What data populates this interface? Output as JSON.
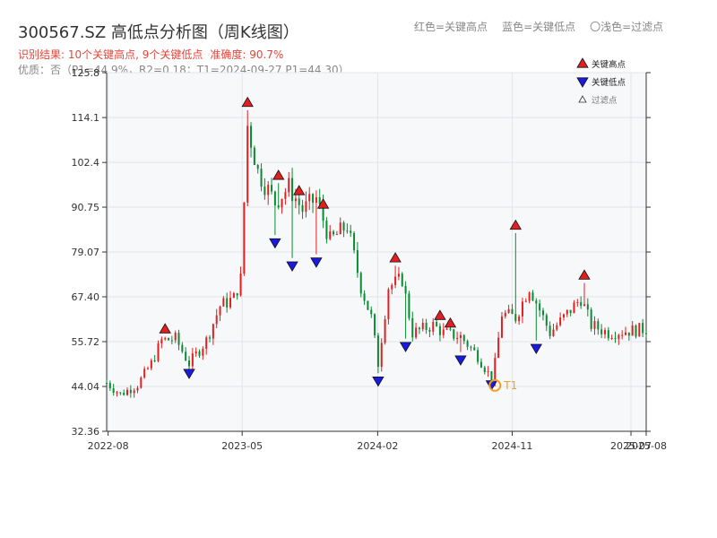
{
  "title": "300567.SZ 高低点分析图（周K线图）",
  "top_legend": {
    "red": "红色=关键高点",
    "blue": "蓝色=关键低点",
    "light": "〇浅色=过滤点"
  },
  "result": {
    "prefix": "识别结果: ",
    "high_count": "10个关键高点, ",
    "low_count": "9个关键低点",
    "accuracy": "准确度: 90.7%"
  },
  "quality": "优质：否（P1=44.9%，R2=0.18；T1=2024-09-27 P1=44.30）",
  "legend": [
    {
      "label": "关键高点",
      "marker": "triangle-up",
      "color": "#e02020"
    },
    {
      "label": "关键低点",
      "marker": "triangle-down",
      "color": "#1a1ae0"
    },
    {
      "label": "过滤点",
      "marker": "triangle-up-hollow",
      "color": "#333333"
    }
  ],
  "colors": {
    "up": "#e02020",
    "down": "#0a8a32",
    "high_marker": "#e02020",
    "low_marker": "#1a1ae0",
    "t1": "#f0a020",
    "plot_bg": "#f7f8fa",
    "grid": "#e2e5ea"
  },
  "chart_data": {
    "type": "candlestick",
    "title": "300567.SZ 高低点分析图（周K线图）",
    "x_ticks": [
      "2022-08",
      "2023-05",
      "2024-02",
      "2024-11",
      "2025-07",
      "2025-08"
    ],
    "x_range": [
      "2022-07-29",
      "2025-08-01"
    ],
    "y_ticks": [
      "32.36",
      "44.04",
      "55.72",
      "67.40",
      "79.07",
      "90.75",
      "102.4",
      "114.1",
      "125.8"
    ],
    "ylim": [
      32.36,
      125.8
    ],
    "grid": true,
    "legend_position": "top-right",
    "anchors": [
      {
        "date": "2022-07-29",
        "close": 45.0
      },
      {
        "date": "2022-08-26",
        "close": 42.0
      },
      {
        "date": "2022-09-30",
        "close": 44.5
      },
      {
        "date": "2022-10-28",
        "close": 50.0
      },
      {
        "date": "2022-11-18",
        "close": 56.0
      },
      {
        "date": "2022-12-16",
        "close": 56.5
      },
      {
        "date": "2023-01-13",
        "close": 50.0
      },
      {
        "date": "2023-02-17",
        "close": 56.0
      },
      {
        "date": "2023-03-17",
        "close": 65.0
      },
      {
        "date": "2023-04-14",
        "close": 67.0
      },
      {
        "date": "2023-04-28",
        "close": 72.0
      },
      {
        "date": "2023-05-12",
        "close": 112.0
      },
      {
        "date": "2023-06-02",
        "close": 100.0
      },
      {
        "date": "2023-07-07",
        "close": 92.0
      },
      {
        "date": "2023-08-04",
        "close": 96.0
      },
      {
        "date": "2023-09-01",
        "close": 90.0
      },
      {
        "date": "2023-09-29",
        "close": 93.0
      },
      {
        "date": "2023-10-27",
        "close": 82.0
      },
      {
        "date": "2023-12-01",
        "close": 86.0
      },
      {
        "date": "2023-12-29",
        "close": 70.0
      },
      {
        "date": "2024-01-19",
        "close": 62.0
      },
      {
        "date": "2024-02-02",
        "close": 50.0
      },
      {
        "date": "2024-02-23",
        "close": 70.0
      },
      {
        "date": "2024-03-22",
        "close": 72.0
      },
      {
        "date": "2024-04-12",
        "close": 58.0
      },
      {
        "date": "2024-05-24",
        "close": 60.0
      },
      {
        "date": "2024-06-14",
        "close": 58.0
      },
      {
        "date": "2024-07-19",
        "close": 57.0
      },
      {
        "date": "2024-08-23",
        "close": 52.0
      },
      {
        "date": "2024-09-20",
        "close": 46.0
      },
      {
        "date": "2024-09-27",
        "close": 50.0
      },
      {
        "date": "2024-10-11",
        "close": 63.0
      },
      {
        "date": "2024-11-08",
        "close": 62.0
      },
      {
        "date": "2024-12-06",
        "close": 70.0
      },
      {
        "date": "2025-01-17",
        "close": 58.0
      },
      {
        "date": "2025-02-28",
        "close": 64.0
      },
      {
        "date": "2025-03-21",
        "close": 67.0
      },
      {
        "date": "2025-04-11",
        "close": 60.0
      },
      {
        "date": "2025-05-16",
        "close": 58.0
      },
      {
        "date": "2025-08-01",
        "close": 59.0
      }
    ],
    "key_highs": [
      {
        "date": "2022-11-25",
        "value": 58.5
      },
      {
        "date": "2023-05-12",
        "value": 117.5
      },
      {
        "date": "2023-07-14",
        "value": 98.5
      },
      {
        "date": "2023-08-25",
        "value": 94.5
      },
      {
        "date": "2023-10-13",
        "value": 91.0
      },
      {
        "date": "2024-03-08",
        "value": 77.0
      },
      {
        "date": "2024-06-07",
        "value": 62.0
      },
      {
        "date": "2024-06-28",
        "value": 60.0
      },
      {
        "date": "2024-11-08",
        "value": 85.5
      },
      {
        "date": "2025-03-28",
        "value": 72.5
      }
    ],
    "key_lows": [
      {
        "date": "2023-01-13",
        "value": 48.0
      },
      {
        "date": "2023-07-07",
        "value": 82.0
      },
      {
        "date": "2023-08-11",
        "value": 76.0
      },
      {
        "date": "2023-09-29",
        "value": 77.0
      },
      {
        "date": "2024-02-02",
        "value": 46.0
      },
      {
        "date": "2024-03-29",
        "value": 55.0
      },
      {
        "date": "2024-07-19",
        "value": 51.5
      },
      {
        "date": "2024-09-20",
        "value": 45.0
      },
      {
        "date": "2024-12-20",
        "value": 54.5
      }
    ],
    "t1": {
      "label": "T1",
      "date": "2024-09-27",
      "value": 44.3
    }
  }
}
